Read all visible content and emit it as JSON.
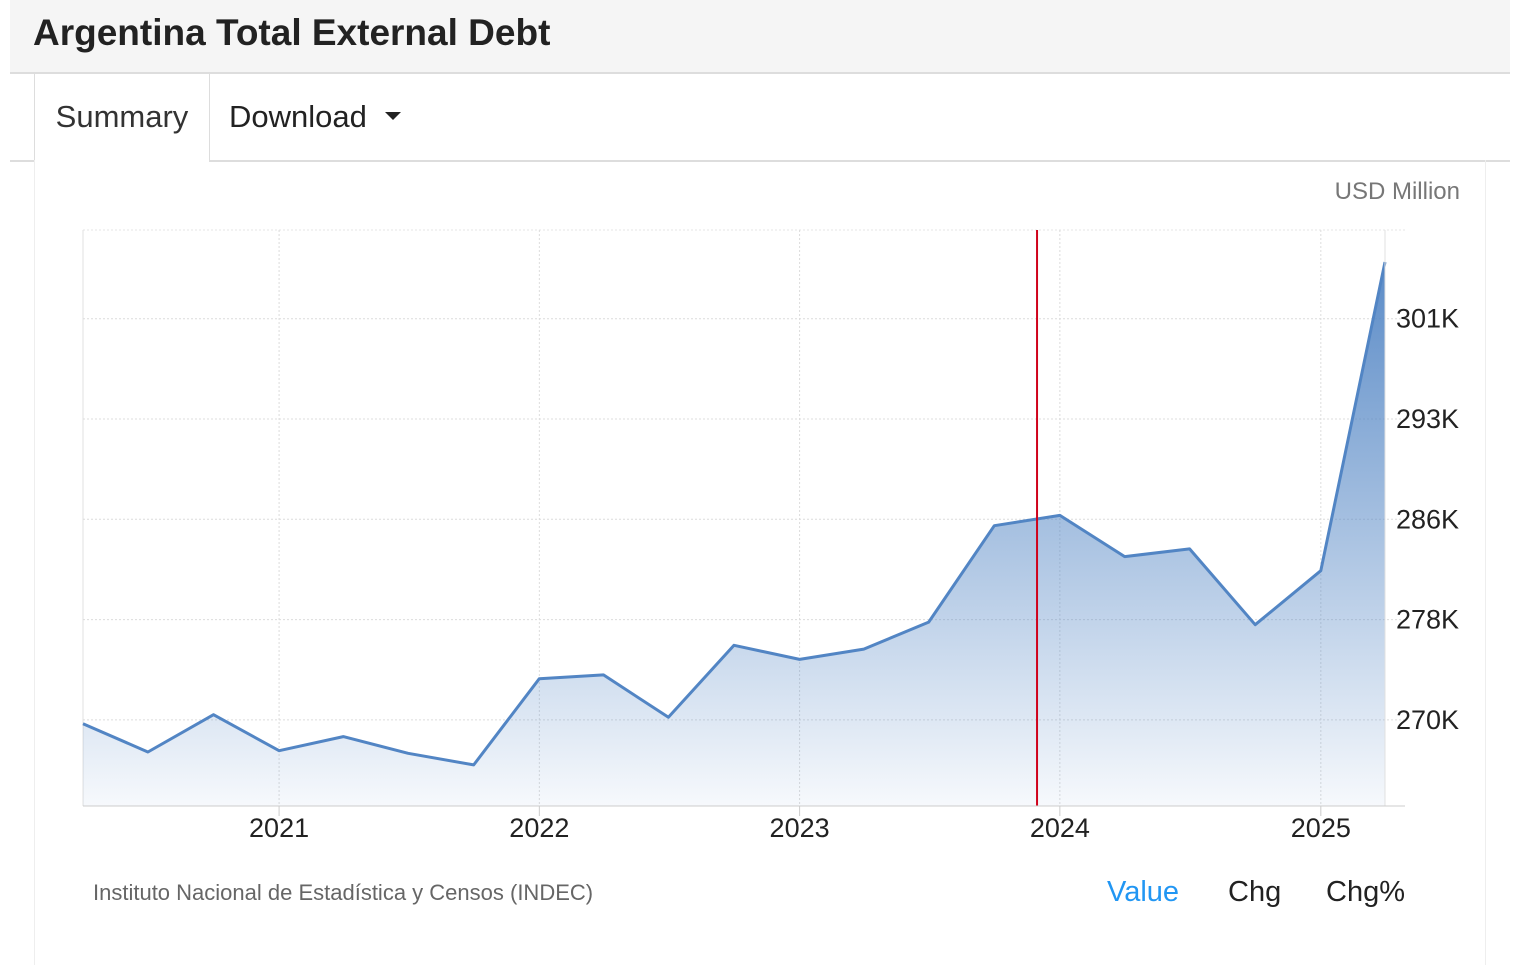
{
  "header": {
    "title": "Argentina Total External Debt"
  },
  "tabs": [
    {
      "label": "Summary"
    },
    {
      "label": "Download"
    }
  ],
  "unit_label": "USD Million",
  "source": "Instituto Nacional de Estadística y Censos (INDEC)",
  "modes": [
    {
      "label": "Value",
      "active": true
    },
    {
      "label": "Chg",
      "active": false
    },
    {
      "label": "Chg%",
      "active": false
    }
  ],
  "colors": {
    "line": "#5285c4",
    "highlight_line": "#d0021b",
    "active_mode": "#2196f3"
  },
  "chart_data": {
    "type": "area",
    "title": "",
    "xlabel": "",
    "ylabel": "",
    "x": [
      "2020-04-01",
      "2020-07-01",
      "2020-10-01",
      "2021-01-01",
      "2021-04-01",
      "2021-07-01",
      "2021-10-01",
      "2022-01-01",
      "2022-04-01",
      "2022-07-01",
      "2022-10-01",
      "2023-01-01",
      "2023-04-01",
      "2023-07-01",
      "2023-10-01",
      "2024-01-01",
      "2024-04-01",
      "2024-07-01",
      "2024-10-01",
      "2025-01-01",
      "2025-04-01"
    ],
    "series": [
      {
        "values": [
          269.6,
          267.4,
          270.3,
          267.5,
          268.6,
          267.3,
          266.4,
          273.1,
          273.4,
          270.1,
          275.7,
          274.6,
          275.4,
          277.5,
          285.0,
          285.8,
          282.6,
          283.2,
          277.3,
          281.5,
          305.5
        ]
      }
    ],
    "x_ticks": [
      "2021",
      "2022",
      "2023",
      "2024",
      "2025"
    ],
    "y_ticks": [
      {
        "value": 269.9,
        "label": "270K"
      },
      {
        "value": 277.7,
        "label": "278K"
      },
      {
        "value": 285.5,
        "label": "286K"
      },
      {
        "value": 293.3,
        "label": "293K"
      },
      {
        "value": 301.1,
        "label": "301K"
      }
    ],
    "xlim": [
      "2020-04-01",
      "2025-04-01"
    ],
    "ylim": [
      263.2,
      308.0
    ],
    "marker_date": "2023-11-30",
    "grid": true,
    "y_axis_position": "right"
  }
}
